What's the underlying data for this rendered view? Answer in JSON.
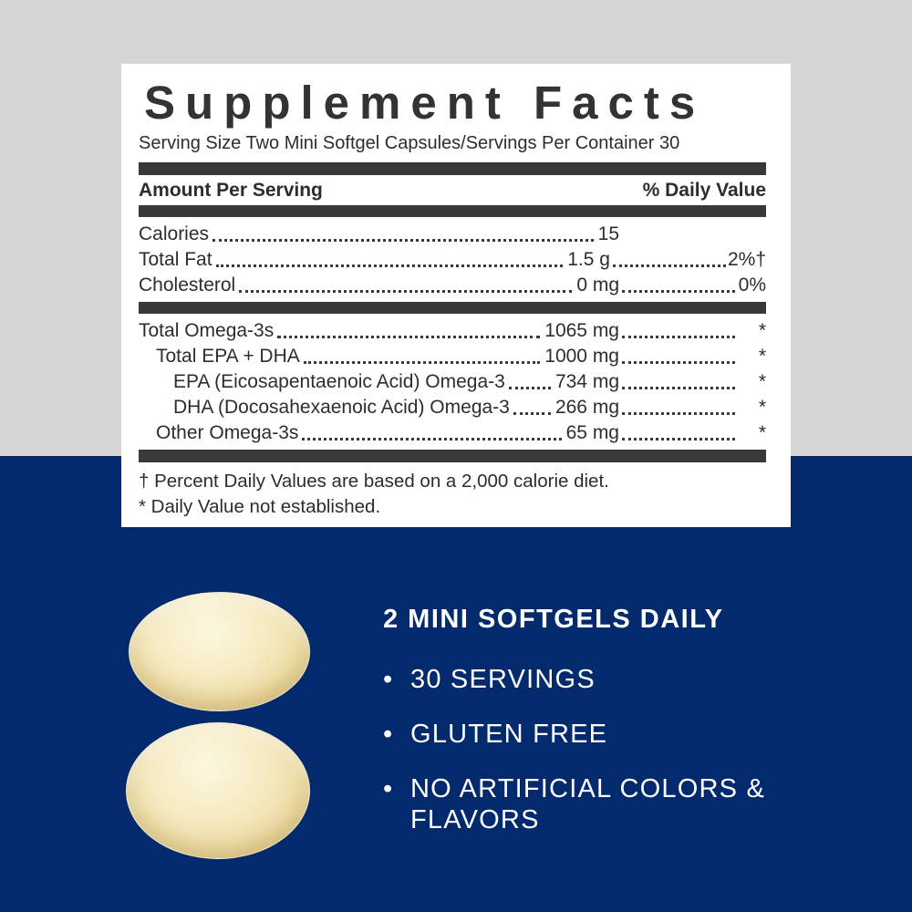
{
  "colors": {
    "background_top": "#d6d6d6",
    "background_bottom": "#032a6d",
    "panel_background": "#ffffff",
    "divider_bar": "#383838",
    "label_text": "#2d2d2d",
    "product_text": "#ffffff",
    "capsule_center": "#fcf7e0",
    "capsule_edge": "#d9bd77"
  },
  "label_panel": {
    "title": "Supplement Facts",
    "serving_info": "Serving Size Two Mini Softgel Capsules/Servings Per Container 30",
    "column_headers": {
      "left": "Amount Per Serving",
      "right": "% Daily Value"
    },
    "rows_main": [
      {
        "name": "Calories",
        "amount": "15",
        "dv": "",
        "indent": 0
      },
      {
        "name": "Total Fat",
        "amount": "1.5 g",
        "dv": "2%†",
        "indent": 0
      },
      {
        "name": "Cholesterol",
        "amount": "0 mg",
        "dv": "0%",
        "indent": 0
      }
    ],
    "rows_omega": [
      {
        "name": "Total Omega-3s",
        "amount": "1065 mg",
        "dv": "*",
        "indent": 0
      },
      {
        "name": "Total EPA + DHA",
        "amount": "1000 mg",
        "dv": "*",
        "indent": 1
      },
      {
        "name": "EPA (Eicosapentaenoic Acid) Omega-3",
        "amount": "734 mg",
        "dv": "*",
        "indent": 2
      },
      {
        "name": "DHA (Docosahexaenoic Acid) Omega-3",
        "amount": "266 mg",
        "dv": "*",
        "indent": 2
      },
      {
        "name": "Other Omega-3s",
        "amount": "65 mg",
        "dv": "*",
        "indent": 1
      }
    ],
    "footnotes": [
      "† Percent Daily Values are based on a 2,000 calorie diet.",
      "* Daily Value not established."
    ]
  },
  "product_info": {
    "heading": "2 MINI SOFTGELS DAILY",
    "bullet_char": "•",
    "bullets": [
      "30 SERVINGS",
      "GLUTEN FREE",
      "NO ARTIFICIAL COLORS & FLAVORS"
    ],
    "capsule_count": 2
  }
}
